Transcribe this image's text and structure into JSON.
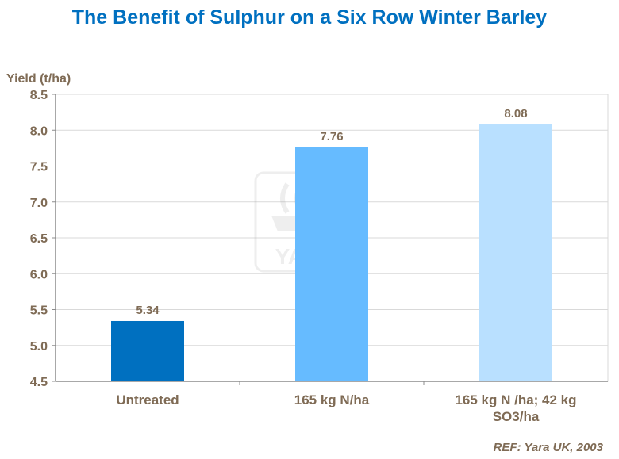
{
  "chart_data": {
    "type": "bar",
    "title": "The Benefit of Sulphur on a Six Row Winter Barley",
    "ylabel": "Yield (t/ha)",
    "xlabel": "",
    "ylim": [
      4.5,
      8.5
    ],
    "yticks": [
      "4.5",
      "5.0",
      "5.5",
      "6.0",
      "6.5",
      "7.0",
      "7.5",
      "8.0",
      "8.5"
    ],
    "grid": true,
    "categories": [
      [
        "Untreated"
      ],
      [
        "165 kg N/ha"
      ],
      [
        "165 kg N /ha; 42 kg",
        "SO3/ha"
      ]
    ],
    "values": [
      5.34,
      7.76,
      8.08
    ],
    "value_labels": [
      "5.34",
      "7.76",
      "8.08"
    ],
    "colors": [
      "#0070c0",
      "#66bbff",
      "#b9e0ff"
    ]
  },
  "watermark": {
    "text": "YARA"
  },
  "footer": {
    "ref": "REF: Yara UK, 2003"
  }
}
